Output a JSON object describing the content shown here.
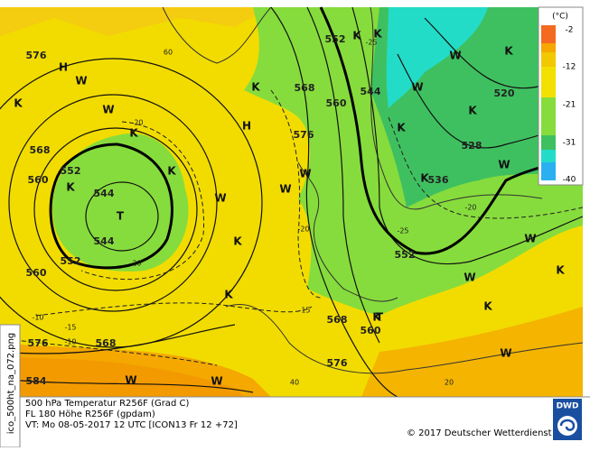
{
  "legend": {
    "unit": "(°C)",
    "labels": [
      "-2",
      "-12",
      "-21",
      "-31",
      "-40"
    ]
  },
  "contour_labels": [
    "576",
    "568",
    "560",
    "552",
    "544",
    "544",
    "552",
    "560",
    "576",
    "568",
    "584",
    "568",
    "560",
    "552",
    "544",
    "576",
    "552",
    "536",
    "528",
    "520",
    "568",
    "560",
    "576"
  ],
  "markers": [
    "H",
    "H",
    "T",
    "T",
    "K",
    "K",
    "K",
    "K",
    "K",
    "K",
    "K",
    "K",
    "K",
    "K",
    "K",
    "K",
    "K",
    "K",
    "K",
    "K",
    "W",
    "W",
    "W",
    "W",
    "W",
    "W",
    "W",
    "W",
    "W",
    "W",
    "W",
    "W",
    "W",
    "W"
  ],
  "temperature_labels": [
    "-20",
    "-20",
    "-20",
    "-25",
    "-20",
    "-15",
    "-15",
    "-10",
    "-10",
    "-25",
    "20",
    "40",
    "60"
  ],
  "footer": {
    "line1": "500 hPa Temperatur R256F (Grad C)",
    "line2": "FL 180  Höhe R256F (gpdam)",
    "line3": "VT: Mo 08-05-2017 12 UTC [ICON13 Fr 12 +72]",
    "copyright": "© 2017 Deutscher Wetterdienst",
    "filename": "ico_500ht_na_072.png",
    "logo": "DWD"
  }
}
